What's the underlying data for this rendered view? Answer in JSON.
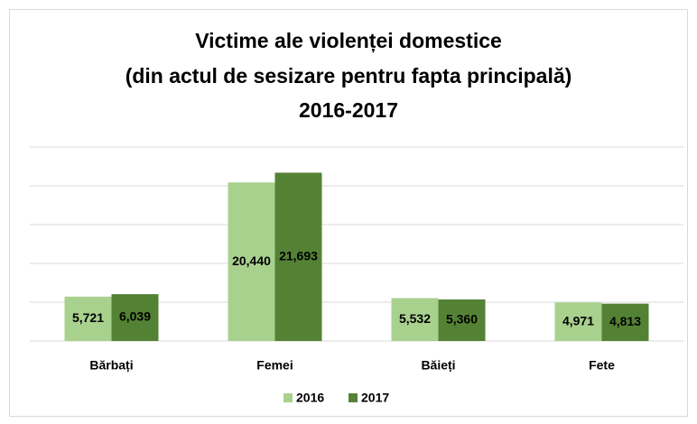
{
  "chart_data": {
    "type": "bar",
    "title": [
      "Victime ale violenței domestice",
      "(din actul de sesizare pentru fapta principală)",
      "2016-2017"
    ],
    "categories": [
      "Bărbați",
      "Femei",
      "Băieți",
      "Fete"
    ],
    "series": [
      {
        "name": "2016",
        "color": "#a9d18e",
        "values": [
          5721,
          20440,
          5532,
          4971
        ],
        "value_labels": [
          "5,721",
          "20,440",
          "5,532",
          "4,971"
        ]
      },
      {
        "name": "2017",
        "color": "#548235",
        "values": [
          6039,
          21693,
          5360,
          4813
        ],
        "value_labels": [
          "6,039",
          "21,693",
          "5,360",
          "4,813"
        ]
      }
    ],
    "ylim": [
      0,
      25000
    ],
    "yticks": [
      0,
      5000,
      10000,
      15000,
      20000,
      25000
    ],
    "grid": true,
    "legend": "bottom"
  }
}
